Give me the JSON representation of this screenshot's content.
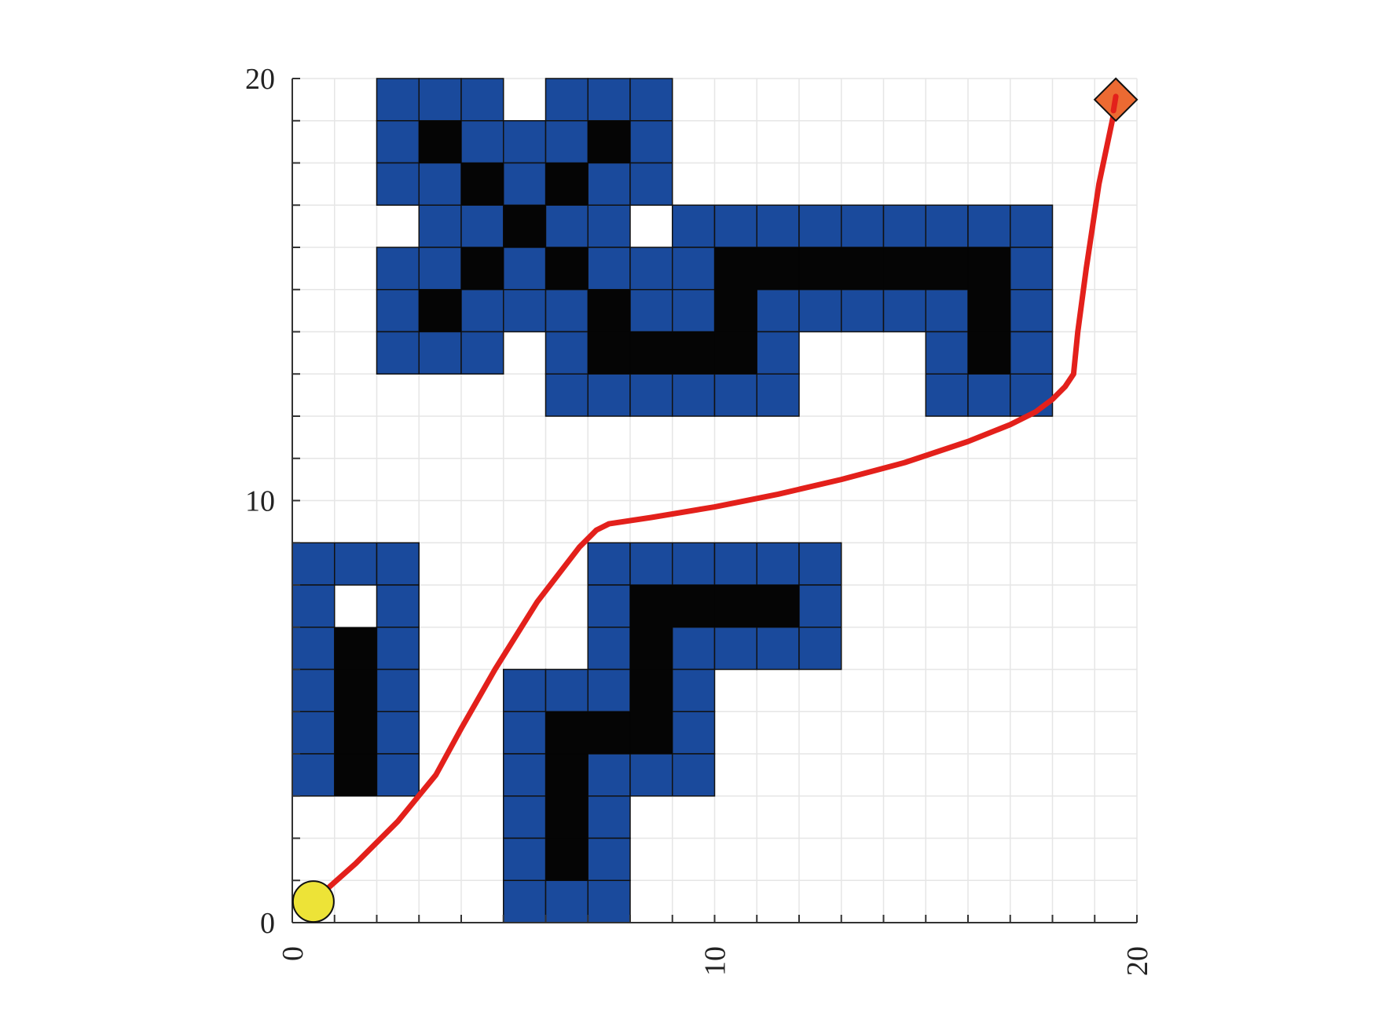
{
  "chart_data": {
    "type": "heatmap",
    "title": "",
    "xlabel": "",
    "ylabel": "",
    "xlim": [
      0,
      20
    ],
    "ylim": [
      0,
      20
    ],
    "x_ticks": [
      {
        "value": 0,
        "label": "0"
      },
      {
        "value": 10,
        "label": "10"
      },
      {
        "value": 20,
        "label": "20"
      }
    ],
    "y_ticks": [
      {
        "value": 0,
        "label": "0"
      },
      {
        "value": 10,
        "label": "10"
      },
      {
        "value": 20,
        "label": "20"
      }
    ],
    "grid": true,
    "colors": {
      "obstacle": "#1a4a9c",
      "obstacle_core": "#050505",
      "path": "#e3201b",
      "start": "#ede337",
      "goal": "#ec6a32",
      "grid": "#e6e6e6",
      "axis": "#333333"
    },
    "obstacle_cells": [
      [
        2,
        19
      ],
      [
        3,
        19
      ],
      [
        4,
        19
      ],
      [
        6,
        19
      ],
      [
        7,
        19
      ],
      [
        8,
        19
      ],
      [
        2,
        18
      ],
      [
        4,
        18
      ],
      [
        5,
        18
      ],
      [
        6,
        18
      ],
      [
        8,
        18
      ],
      [
        2,
        17
      ],
      [
        3,
        17
      ],
      [
        5,
        17
      ],
      [
        7,
        17
      ],
      [
        8,
        17
      ],
      [
        3,
        16
      ],
      [
        4,
        16
      ],
      [
        6,
        16
      ],
      [
        7,
        16
      ],
      [
        9,
        16
      ],
      [
        10,
        16
      ],
      [
        11,
        16
      ],
      [
        12,
        16
      ],
      [
        13,
        16
      ],
      [
        14,
        16
      ],
      [
        15,
        16
      ],
      [
        16,
        16
      ],
      [
        17,
        16
      ],
      [
        2,
        15
      ],
      [
        3,
        15
      ],
      [
        5,
        15
      ],
      [
        7,
        15
      ],
      [
        8,
        15
      ],
      [
        9,
        15
      ],
      [
        17,
        15
      ],
      [
        2,
        14
      ],
      [
        4,
        14
      ],
      [
        5,
        14
      ],
      [
        6,
        14
      ],
      [
        8,
        14
      ],
      [
        9,
        14
      ],
      [
        11,
        14
      ],
      [
        12,
        14
      ],
      [
        13,
        14
      ],
      [
        14,
        14
      ],
      [
        15,
        14
      ],
      [
        17,
        14
      ],
      [
        2,
        13
      ],
      [
        3,
        13
      ],
      [
        4,
        13
      ],
      [
        6,
        13
      ],
      [
        11,
        13
      ],
      [
        15,
        13
      ],
      [
        17,
        13
      ],
      [
        6,
        12
      ],
      [
        7,
        12
      ],
      [
        8,
        12
      ],
      [
        9,
        12
      ],
      [
        10,
        12
      ],
      [
        11,
        12
      ],
      [
        15,
        12
      ],
      [
        16,
        12
      ],
      [
        17,
        12
      ],
      [
        0,
        8
      ],
      [
        1,
        8
      ],
      [
        2,
        8
      ],
      [
        7,
        8
      ],
      [
        8,
        8
      ],
      [
        9,
        8
      ],
      [
        10,
        8
      ],
      [
        11,
        8
      ],
      [
        12,
        8
      ],
      [
        0,
        7
      ],
      [
        2,
        7
      ],
      [
        7,
        7
      ],
      [
        12,
        7
      ],
      [
        0,
        6
      ],
      [
        2,
        6
      ],
      [
        7,
        6
      ],
      [
        9,
        6
      ],
      [
        10,
        6
      ],
      [
        11,
        6
      ],
      [
        12,
        6
      ],
      [
        0,
        5
      ],
      [
        2,
        5
      ],
      [
        5,
        5
      ],
      [
        6,
        5
      ],
      [
        7,
        5
      ],
      [
        9,
        5
      ],
      [
        0,
        4
      ],
      [
        2,
        4
      ],
      [
        5,
        4
      ],
      [
        9,
        4
      ],
      [
        0,
        3
      ],
      [
        1,
        3
      ],
      [
        2,
        3
      ],
      [
        5,
        3
      ],
      [
        7,
        3
      ],
      [
        8,
        3
      ],
      [
        9,
        3
      ],
      [
        5,
        2
      ],
      [
        7,
        2
      ],
      [
        5,
        1
      ],
      [
        7,
        1
      ],
      [
        5,
        0
      ],
      [
        6,
        0
      ],
      [
        7,
        0
      ]
    ],
    "core_cells": [
      [
        3,
        18
      ],
      [
        7,
        18
      ],
      [
        4,
        17
      ],
      [
        6,
        17
      ],
      [
        5,
        16
      ],
      [
        4,
        15
      ],
      [
        6,
        15
      ],
      [
        10,
        15
      ],
      [
        11,
        15
      ],
      [
        12,
        15
      ],
      [
        13,
        15
      ],
      [
        14,
        15
      ],
      [
        15,
        15
      ],
      [
        16,
        15
      ],
      [
        3,
        14
      ],
      [
        7,
        14
      ],
      [
        10,
        14
      ],
      [
        16,
        14
      ],
      [
        7,
        13
      ],
      [
        8,
        13
      ],
      [
        9,
        13
      ],
      [
        10,
        13
      ],
      [
        16,
        13
      ],
      [
        8,
        7
      ],
      [
        9,
        7
      ],
      [
        10,
        7
      ],
      [
        11,
        7
      ],
      [
        1,
        6
      ],
      [
        8,
        6
      ],
      [
        1,
        5
      ],
      [
        8,
        5
      ],
      [
        1,
        4
      ],
      [
        6,
        4
      ],
      [
        7,
        4
      ],
      [
        8,
        4
      ],
      [
        1,
        3
      ],
      [
        6,
        3
      ],
      [
        6,
        2
      ],
      [
        6,
        1
      ]
    ],
    "series": [
      {
        "type": "line",
        "x": [
          0.6,
          1.5,
          2.5,
          3.4,
          4.0,
          4.8,
          5.8,
          6.8,
          7.2,
          7.5,
          8.5,
          10.0,
          11.5,
          13.0,
          14.5,
          16.0,
          17.0,
          17.6,
          18.0,
          18.3,
          18.5,
          18.6,
          18.8,
          19.1,
          19.5
        ],
        "y": [
          0.6,
          1.4,
          2.4,
          3.5,
          4.6,
          6.0,
          7.6,
          8.9,
          9.3,
          9.45,
          9.6,
          9.85,
          10.15,
          10.5,
          10.9,
          11.4,
          11.8,
          12.1,
          12.4,
          12.7,
          13.0,
          14.0,
          15.5,
          17.5,
          19.4
        ]
      }
    ],
    "start_point": {
      "x": 0.5,
      "y": 0.5
    },
    "goal_point": {
      "x": 19.5,
      "y": 19.5
    }
  }
}
